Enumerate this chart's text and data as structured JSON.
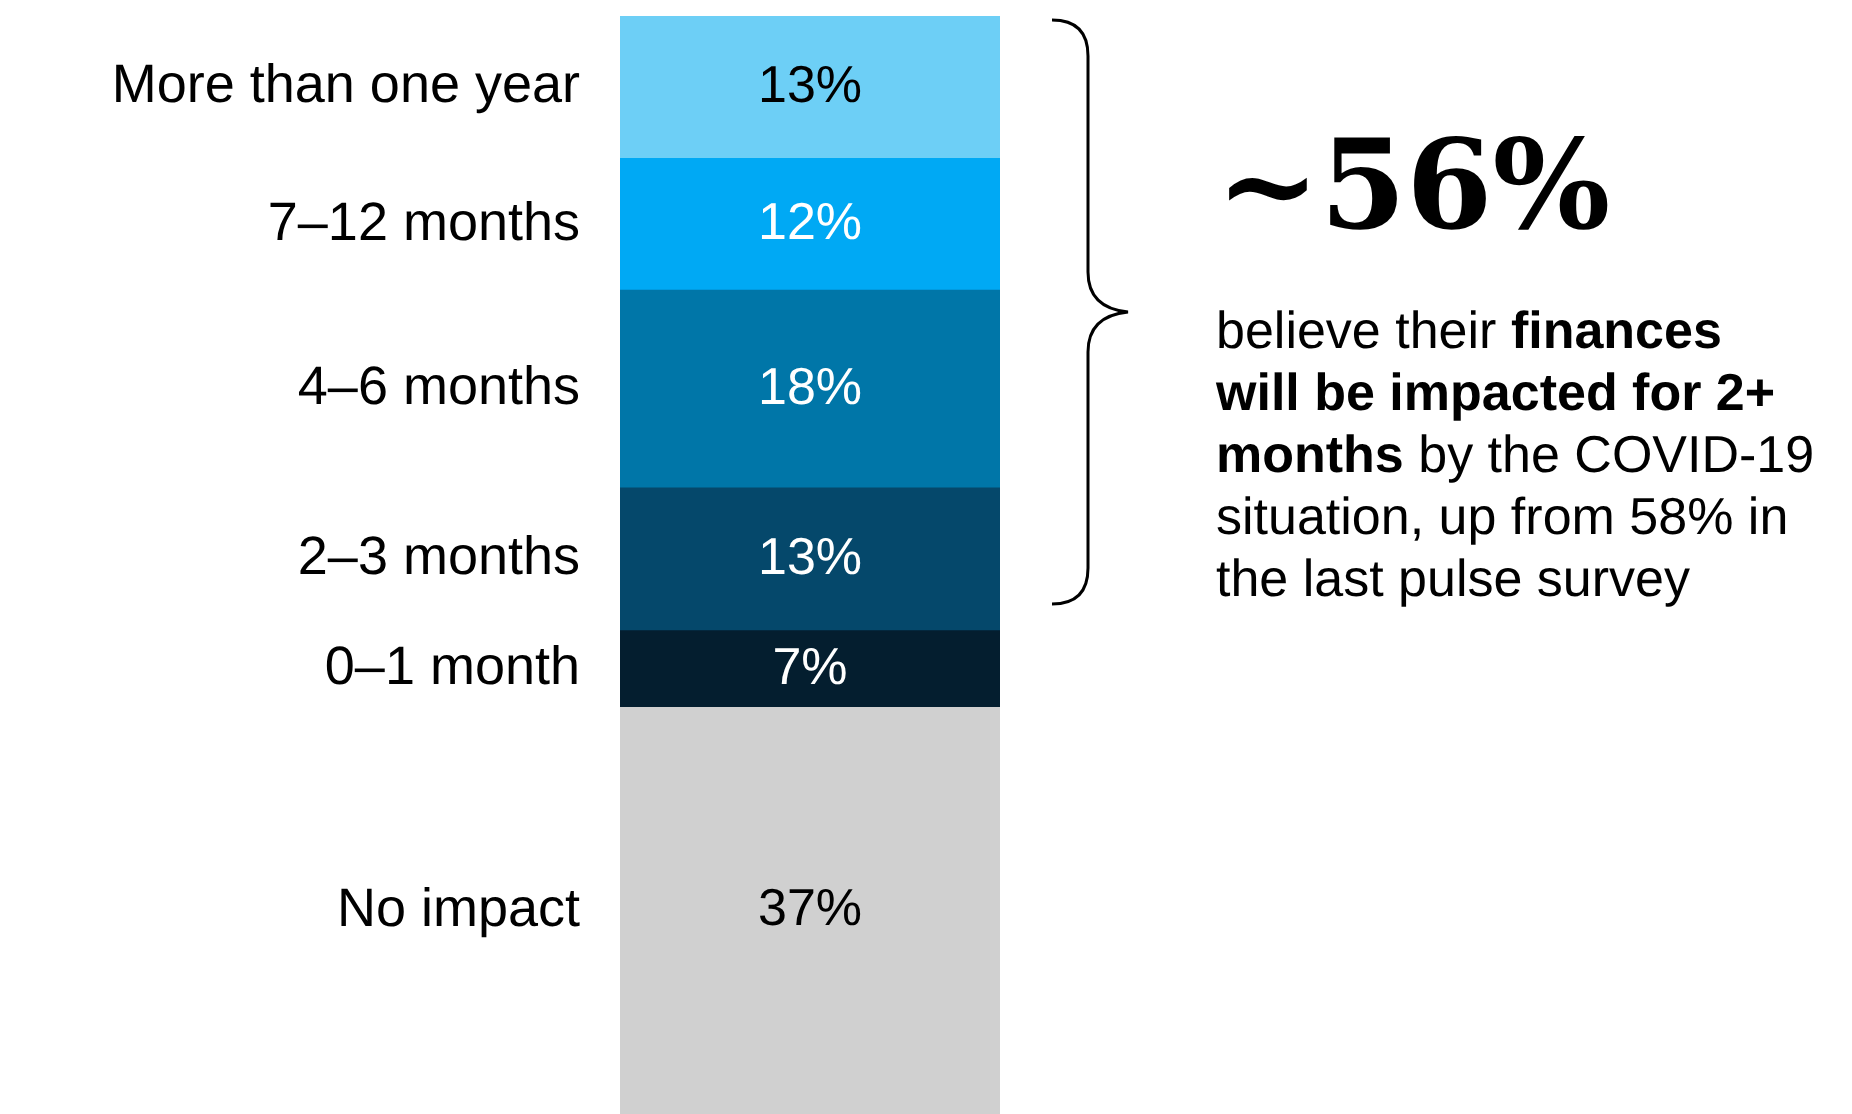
{
  "chart_data": {
    "type": "bar",
    "stacked": true,
    "categories": [
      null
    ],
    "tick_labels": false,
    "legend": false,
    "series": [
      {
        "name": "No impact",
        "color": "#d0d0d0",
        "values": [
          37
        ],
        "value_labels": [
          "37%"
        ]
      },
      {
        "name": "0–1 month",
        "color": "#041e2f",
        "values": [
          7
        ],
        "value_labels": [
          "7%"
        ]
      },
      {
        "name": "2–3 months",
        "color": "#05486b",
        "values": [
          13
        ],
        "value_labels": [
          "13%"
        ]
      },
      {
        "name": "4–6 months",
        "color": "#0076a8",
        "values": [
          18
        ],
        "value_labels": [
          "18%"
        ]
      },
      {
        "name": "7–12 months",
        "color": "#00a9f4",
        "values": [
          12
        ],
        "value_labels": [
          "12%"
        ]
      },
      {
        "name": "More than one year",
        "color": "#6dcff6",
        "values": [
          13
        ],
        "value_labels": [
          "13%"
        ]
      }
    ],
    "annotations": [
      "~56%",
      "believe their",
      "finances will be impacted for 2+ months",
      "by the COVID-19 situation, up from 58% in the last pulse survey"
    ]
  }
}
